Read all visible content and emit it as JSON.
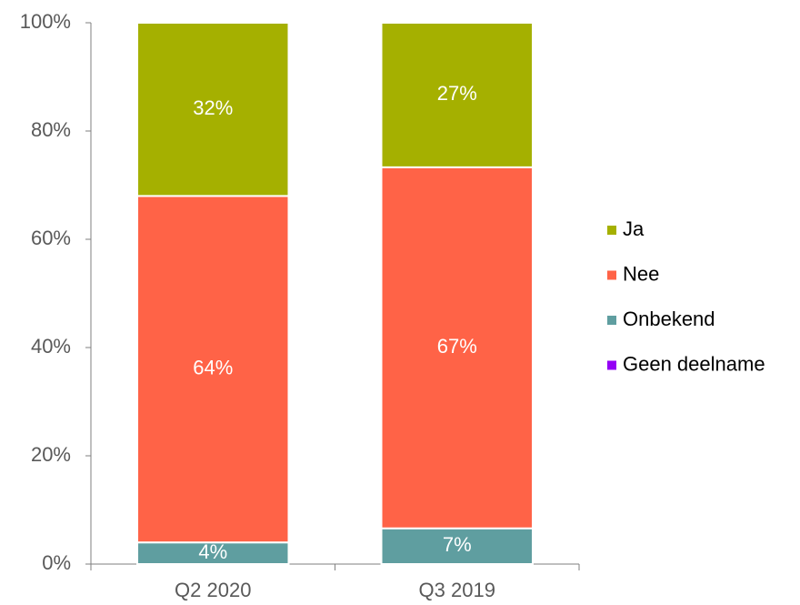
{
  "chart_data": {
    "type": "stacked_bar",
    "categories": [
      "Q2 2020",
      "Q3 2019"
    ],
    "series": [
      {
        "name": "Ja",
        "color": "#a5b000",
        "values": [
          32,
          26.7
        ],
        "value_labels": [
          "32%",
          "27%"
        ]
      },
      {
        "name": "Nee",
        "color": "#ff6347",
        "values": [
          64,
          66.7
        ],
        "value_labels": [
          "64%",
          "67%"
        ]
      },
      {
        "name": "Onbekend",
        "color": "#5f9ea0",
        "values": [
          4,
          6.6
        ],
        "value_labels": [
          "4%",
          "7%"
        ]
      },
      {
        "name": "Geen deelname",
        "color": "#9400f5",
        "values": [
          0,
          0
        ]
      }
    ],
    "ylim": [
      0,
      100
    ],
    "yticks": [
      {
        "value": 0,
        "label": "0%"
      },
      {
        "value": 20,
        "label": "20%"
      },
      {
        "value": 40,
        "label": "40%"
      },
      {
        "value": 60,
        "label": "60%"
      },
      {
        "value": 80,
        "label": "80%"
      },
      {
        "value": 100,
        "label": "100%"
      }
    ],
    "legend": "right"
  }
}
